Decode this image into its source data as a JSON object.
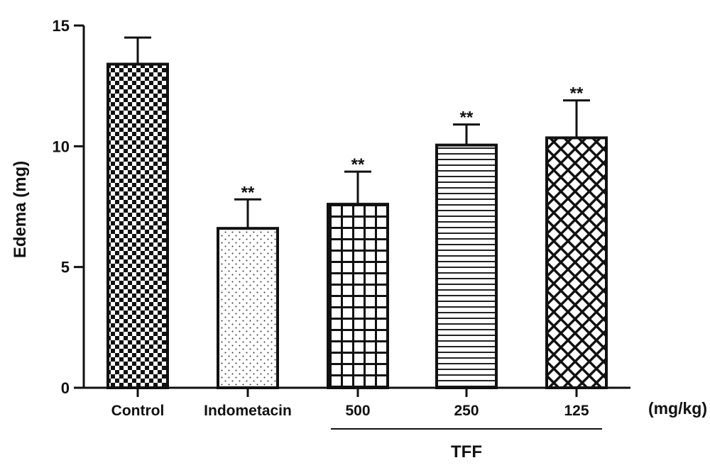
{
  "chart_data": {
    "type": "bar",
    "ylabel": "Edema (mg)",
    "ylim": [
      0,
      15
    ],
    "yticks": [
      0,
      5,
      10,
      15
    ],
    "categories": [
      "Control",
      "Indometacin",
      "500",
      "250",
      "125"
    ],
    "values": [
      13.4,
      6.6,
      7.6,
      10.05,
      10.35
    ],
    "errors": [
      1.1,
      1.2,
      1.35,
      0.85,
      1.55
    ],
    "significance": [
      "",
      "**",
      "**",
      "**",
      "**"
    ],
    "patterns": [
      "checker",
      "dots",
      "grid",
      "horizontal-lines",
      "crosshatch"
    ],
    "unit_label": "(mg/kg)",
    "group_label": "TFF",
    "group_members": [
      "500",
      "250",
      "125"
    ],
    "grid": false,
    "legend": "none"
  }
}
